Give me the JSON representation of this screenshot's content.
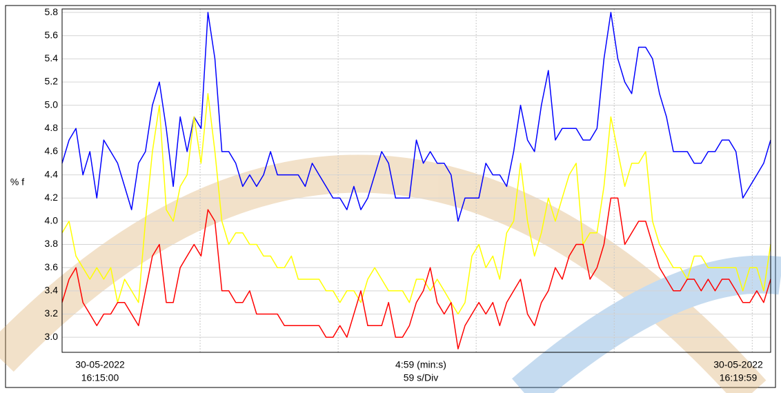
{
  "chart_data": {
    "type": "line",
    "y_label": "% f",
    "x_labels": {
      "start_date": "30-05-2022",
      "start_time": "16:15:00",
      "span": "4:59 (min:s)",
      "division": "59 s/Div",
      "end_date": "30-05-2022",
      "end_time": "16:19:59"
    },
    "ylim": [
      2.87,
      5.83
    ],
    "yticks": [
      {
        "value": 3.0,
        "label": "3.0"
      },
      3.2,
      3.4,
      3.6,
      3.8,
      {
        "value": 4.0,
        "label": "4.0"
      },
      4.2,
      4.4,
      4.6,
      4.8,
      {
        "value": 5.0,
        "label": "5.0"
      },
      5.2,
      5.4,
      5.6,
      5.8
    ],
    "grid": true,
    "series": [
      {
        "color": "#0000ff",
        "values": [
          4.5,
          4.7,
          4.8,
          4.4,
          4.6,
          4.2,
          4.7,
          4.6,
          4.5,
          4.3,
          4.1,
          4.5,
          4.6,
          5.0,
          5.2,
          4.8,
          4.3,
          4.9,
          4.6,
          4.9,
          4.8,
          5.8,
          5.4,
          4.6,
          4.6,
          4.5,
          4.3,
          4.4,
          4.3,
          4.4,
          4.6,
          4.4,
          4.4,
          4.4,
          4.4,
          4.3,
          4.5,
          4.4,
          4.3,
          4.2,
          4.2,
          4.1,
          4.3,
          4.1,
          4.2,
          4.4,
          4.6,
          4.5,
          4.2,
          4.2,
          4.2,
          4.7,
          4.5,
          4.6,
          4.5,
          4.5,
          4.4,
          4.0,
          4.2,
          4.2,
          4.2,
          4.5,
          4.4,
          4.4,
          4.3,
          4.6,
          5.0,
          4.7,
          4.6,
          5.0,
          5.3,
          4.7,
          4.8,
          4.8,
          4.8,
          4.7,
          4.7,
          4.8,
          5.4,
          5.8,
          5.4,
          5.2,
          5.1,
          5.5,
          5.5,
          5.4,
          5.1,
          4.9,
          4.6,
          4.6,
          4.6,
          4.5,
          4.5,
          4.6,
          4.6,
          4.7,
          4.7,
          4.6,
          4.2,
          4.3,
          4.4,
          4.5,
          4.7
        ]
      },
      {
        "color": "#ffff00",
        "values": [
          3.9,
          4.0,
          3.7,
          3.6,
          3.5,
          3.6,
          3.5,
          3.6,
          3.3,
          3.5,
          3.4,
          3.3,
          4.0,
          4.6,
          5.0,
          4.1,
          4.0,
          4.3,
          4.4,
          4.9,
          4.5,
          5.1,
          4.6,
          4.0,
          3.8,
          3.9,
          3.9,
          3.8,
          3.8,
          3.7,
          3.7,
          3.6,
          3.6,
          3.7,
          3.5,
          3.5,
          3.5,
          3.5,
          3.4,
          3.4,
          3.3,
          3.4,
          3.4,
          3.3,
          3.5,
          3.6,
          3.5,
          3.4,
          3.4,
          3.4,
          3.3,
          3.5,
          3.5,
          3.4,
          3.5,
          3.4,
          3.3,
          3.2,
          3.3,
          3.7,
          3.8,
          3.6,
          3.7,
          3.5,
          3.9,
          4.0,
          4.5,
          4.0,
          3.7,
          3.9,
          4.2,
          4.0,
          4.2,
          4.4,
          4.5,
          3.8,
          3.9,
          3.9,
          4.3,
          4.9,
          4.6,
          4.3,
          4.5,
          4.5,
          4.6,
          4.0,
          3.8,
          3.7,
          3.6,
          3.6,
          3.5,
          3.7,
          3.7,
          3.6,
          3.6,
          3.6,
          3.6,
          3.6,
          3.4,
          3.6,
          3.6,
          3.4,
          3.8
        ]
      },
      {
        "color": "#ff0000",
        "values": [
          3.3,
          3.5,
          3.6,
          3.3,
          3.2,
          3.1,
          3.2,
          3.2,
          3.3,
          3.3,
          3.2,
          3.1,
          3.4,
          3.7,
          3.8,
          3.3,
          3.3,
          3.6,
          3.7,
          3.8,
          3.7,
          4.1,
          4.0,
          3.4,
          3.4,
          3.3,
          3.3,
          3.4,
          3.2,
          3.2,
          3.2,
          3.2,
          3.1,
          3.1,
          3.1,
          3.1,
          3.1,
          3.1,
          3.0,
          3.0,
          3.1,
          3.0,
          3.2,
          3.4,
          3.1,
          3.1,
          3.1,
          3.3,
          3.0,
          3.0,
          3.1,
          3.3,
          3.4,
          3.6,
          3.3,
          3.2,
          3.3,
          2.9,
          3.1,
          3.2,
          3.3,
          3.2,
          3.3,
          3.1,
          3.3,
          3.4,
          3.5,
          3.2,
          3.1,
          3.3,
          3.4,
          3.6,
          3.5,
          3.7,
          3.8,
          3.8,
          3.5,
          3.6,
          3.8,
          4.2,
          4.2,
          3.8,
          3.9,
          4.0,
          4.0,
          3.8,
          3.6,
          3.5,
          3.4,
          3.4,
          3.5,
          3.5,
          3.4,
          3.5,
          3.4,
          3.5,
          3.5,
          3.4,
          3.3,
          3.3,
          3.4,
          3.3,
          3.5
        ]
      }
    ]
  }
}
